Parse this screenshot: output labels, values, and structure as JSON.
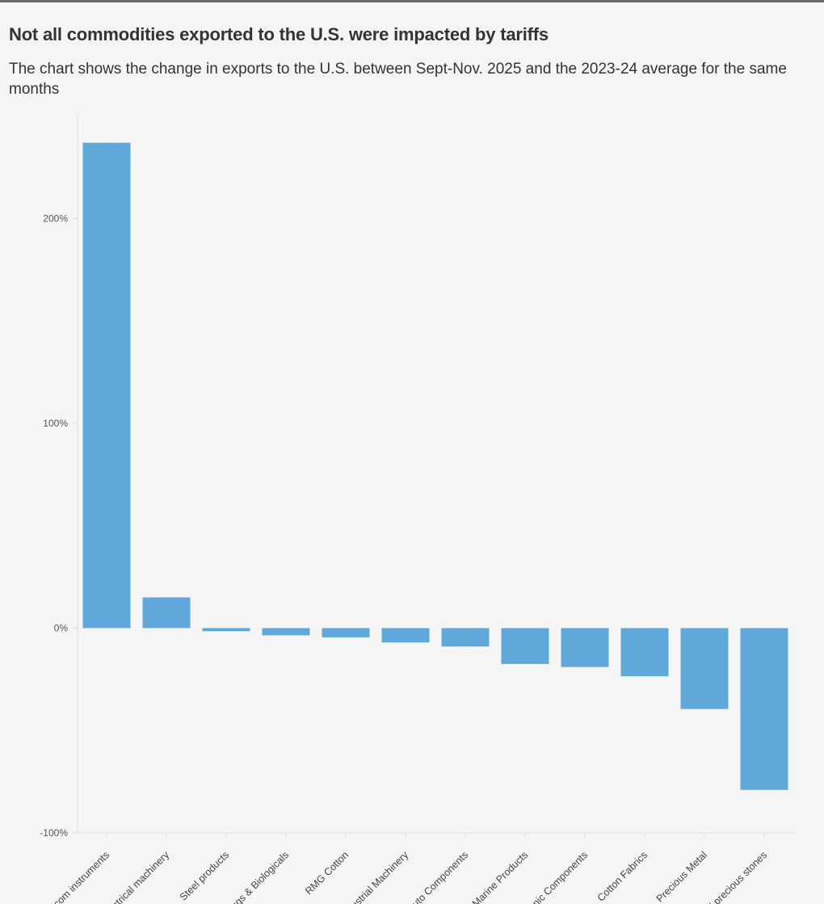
{
  "title": "Not all commodities exported to the U.S. were impacted by tariffs",
  "subtitle": "The chart shows the change in exports to the U.S. between Sept-Nov. 2025 and the 2023-24 average for the same months",
  "colors": {
    "bar": "#5fa8d9",
    "grid": "#e4e4e4",
    "axis": "#dddddd",
    "background": "#f5f5f5"
  },
  "chart_data": {
    "type": "bar",
    "title": "Not all commodities exported to the U.S. were impacted by tariffs",
    "xlabel": "",
    "ylabel": "",
    "ylim": [
      -100,
      240
    ],
    "yticks": [
      -100,
      0,
      100,
      200
    ],
    "ytick_labels": [
      "-100%",
      "0%",
      "100%",
      "200%"
    ],
    "grid": false,
    "categories": [
      "Telecom instruments",
      "Electrical machinery",
      "Steel products",
      "Drugs & Biologicals",
      "RMG Cotton",
      "Industrial Machinery",
      "Auto Components",
      "Marine Products",
      "Electronic Components",
      "Cotton Fabrics",
      "Precious Metal",
      "Pearls and precious stones"
    ],
    "values": [
      237,
      15,
      -1.5,
      -3.5,
      -4.5,
      -7,
      -9,
      -17.5,
      -19,
      -23.5,
      -39.5,
      -79
    ]
  }
}
